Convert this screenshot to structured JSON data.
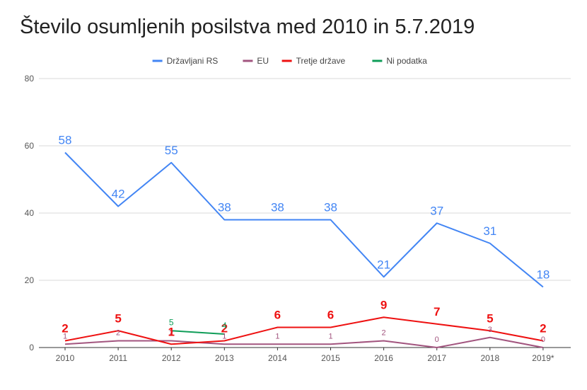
{
  "chart_data": {
    "type": "line",
    "title": "Število osumljenih posilstva med 2010 in 5.7.2019",
    "xlabel": "",
    "ylabel": "",
    "ylim": [
      0,
      80
    ],
    "yticks": [
      0,
      20,
      40,
      60,
      80
    ],
    "categories": [
      "2010",
      "2011",
      "2012",
      "2013",
      "2014",
      "2015",
      "2016",
      "2017",
      "2018",
      "2019*"
    ],
    "legend_position": "top",
    "grid": true,
    "series": [
      {
        "name": "Državljani RS",
        "color": "#4285f4",
        "label_size": 17,
        "label_weight": "normal",
        "label_position": "above",
        "values": [
          58,
          42,
          55,
          38,
          38,
          38,
          21,
          37,
          31,
          18
        ]
      },
      {
        "name": "EU",
        "color": "#a2557f",
        "label_size": 11,
        "label_weight": "normal",
        "label_position": "above",
        "values": [
          1,
          2,
          2,
          1,
          1,
          1,
          2,
          0,
          3,
          0
        ]
      },
      {
        "name": "Tretje države",
        "color": "#ee1111",
        "label_size": 17,
        "label_weight": "bold",
        "label_position": "above",
        "values": [
          2,
          5,
          1,
          2,
          6,
          6,
          9,
          7,
          5,
          2
        ]
      },
      {
        "name": "Ni podatka",
        "color": "#0f9d58",
        "label_size": 12,
        "label_weight": "normal",
        "label_position": "above",
        "values": [
          null,
          null,
          5,
          4,
          null,
          null,
          null,
          null,
          null,
          null
        ]
      }
    ]
  }
}
